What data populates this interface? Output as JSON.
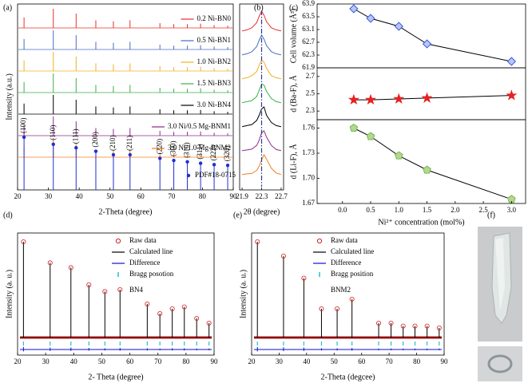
{
  "panel_labels": [
    "(a)",
    "(b)",
    "(c)",
    "(d)",
    "(e)",
    "(f)"
  ],
  "chart_data": [
    {
      "type": "stick-stack",
      "xlabel": "2-Theta (degree)",
      "ylabel": "Intensity (a.u.)",
      "xlim": [
        20,
        90
      ],
      "xticks": [
        20,
        30,
        40,
        50,
        60,
        70,
        80,
        90
      ],
      "x": [
        22.1,
        31.6,
        39.0,
        45.4,
        51.1,
        56.5,
        66.2,
        70.7,
        75.1,
        79.4,
        83.8,
        88.2
      ],
      "series": [
        {
          "name": "0.2 Ni-BN0",
          "color": "#e8312a",
          "values": [
            0.55,
            1.0,
            0.75,
            0.4,
            0.35,
            0.4,
            0.25,
            0.2,
            0.2,
            0.22,
            0.15,
            0.12
          ]
        },
        {
          "name": "0.5 Ni-BN1",
          "color": "#4a6bc4",
          "values": [
            0.55,
            1.0,
            0.75,
            0.4,
            0.35,
            0.4,
            0.25,
            0.2,
            0.2,
            0.22,
            0.15,
            0.12
          ]
        },
        {
          "name": "1.0 Ni-BN2",
          "color": "#f0b020",
          "values": [
            0.55,
            1.0,
            0.75,
            0.4,
            0.35,
            0.4,
            0.25,
            0.2,
            0.2,
            0.22,
            0.15,
            0.12
          ]
        },
        {
          "name": "1.5 Ni-BN3",
          "color": "#3ab04a",
          "values": [
            0.55,
            1.0,
            0.75,
            0.4,
            0.35,
            0.4,
            0.25,
            0.2,
            0.2,
            0.22,
            0.15,
            0.12
          ]
        },
        {
          "name": "3.0 Ni-BN4",
          "color": "#000000",
          "values": [
            0.55,
            1.0,
            0.75,
            0.4,
            0.35,
            0.4,
            0.25,
            0.2,
            0.2,
            0.22,
            0.15,
            0.12
          ]
        },
        {
          "name": "3.0 Ni/0.5 Mg-BNM1",
          "color": "#8e2c8e",
          "values": [
            0.55,
            1.0,
            0.75,
            0.4,
            0.35,
            0.4,
            0.25,
            0.2,
            0.2,
            0.22,
            0.15,
            0.12
          ]
        },
        {
          "name": "3.0 Ni/1.0 Mg-BNM2",
          "color": "#f08020",
          "values": [
            0.55,
            1.0,
            0.75,
            0.4,
            0.35,
            0.4,
            0.25,
            0.2,
            0.2,
            0.22,
            0.15,
            0.12
          ]
        }
      ],
      "reference": {
        "name": "PDF#18-0715",
        "color": "#1f2fd0",
        "values": [
          0.75,
          0.65,
          0.6,
          0.55,
          0.5,
          0.5,
          0.45,
          0.42,
          0.4,
          0.38,
          0.36,
          0.35
        ],
        "hkl": [
          "(100)",
          "(110)",
          "(111)",
          "(200)",
          "(210)",
          "(211)",
          "(220)",
          "(300)",
          "(310)",
          "(311)",
          "(222)",
          "(320)"
        ]
      }
    },
    {
      "type": "line-stack",
      "xlabel": "2θ (degree)",
      "xlim": [
        21.85,
        22.75
      ],
      "xticks": [
        21.9,
        22.3,
        22.7
      ],
      "ref_line": 22.3,
      "x": [
        21.9,
        22.0,
        22.1,
        22.2,
        22.25,
        22.3,
        22.35,
        22.4,
        22.5,
        22.6,
        22.7
      ],
      "series": [
        {
          "color": "#e8312a",
          "values": [
            0.05,
            0.1,
            0.2,
            0.45,
            0.75,
            1.0,
            0.8,
            0.5,
            0.2,
            0.1,
            0.05
          ]
        },
        {
          "color": "#4a6bc4",
          "values": [
            0.05,
            0.1,
            0.2,
            0.45,
            0.75,
            1.0,
            0.8,
            0.5,
            0.2,
            0.1,
            0.05
          ]
        },
        {
          "color": "#f0b020",
          "values": [
            0.05,
            0.1,
            0.2,
            0.4,
            0.7,
            0.95,
            0.85,
            0.55,
            0.2,
            0.1,
            0.05
          ]
        },
        {
          "color": "#3ab04a",
          "values": [
            0.05,
            0.1,
            0.15,
            0.35,
            0.65,
            0.95,
            0.9,
            0.6,
            0.25,
            0.1,
            0.05
          ]
        },
        {
          "color": "#000000",
          "values": [
            0.05,
            0.1,
            0.15,
            0.35,
            0.6,
            0.9,
            1.0,
            0.6,
            0.25,
            0.1,
            0.05
          ]
        },
        {
          "color": "#8e2c8e",
          "values": [
            0.05,
            0.08,
            0.12,
            0.3,
            0.55,
            0.9,
            1.0,
            0.7,
            0.3,
            0.1,
            0.05
          ]
        },
        {
          "color": "#f08020",
          "values": [
            0.05,
            0.08,
            0.1,
            0.25,
            0.45,
            0.75,
            1.0,
            0.8,
            0.35,
            0.12,
            0.05
          ]
        }
      ]
    },
    {
      "type": "stacked-line",
      "xlabel": "Ni²⁺ concentration (mol%)",
      "xlim": [
        -0.45,
        3.25
      ],
      "xticks": [
        {
          "value": 0,
          "label": "0.0"
        },
        0.5,
        {
          "value": 1,
          "label": "1.0"
        },
        1.5,
        {
          "value": 2,
          "label": "2.0"
        },
        2.5,
        {
          "value": 3,
          "label": "3.0"
        }
      ],
      "x": [
        0.2,
        0.5,
        1.0,
        1.5,
        3.0
      ],
      "panels": [
        {
          "ylabel": "Cell volume (Å³)",
          "ylim": [
            61.9,
            63.9
          ],
          "yticks": [
            61.9,
            62.3,
            62.7,
            63.1,
            63.5,
            63.9
          ],
          "values": [
            63.75,
            63.45,
            63.2,
            62.65,
            62.1
          ],
          "color": "#3050e0",
          "marker": "diamond"
        },
        {
          "ylabel": "d (Ba-F), Å",
          "ylim": [
            2.2,
            2.8
          ],
          "yticks": [
            2.3,
            2.5,
            2.7
          ],
          "values": [
            2.43,
            2.43,
            2.44,
            2.45,
            2.48
          ],
          "color": "#e82020",
          "marker": "star"
        },
        {
          "ylabel": "d (Li-F), Å",
          "ylim": [
            1.67,
            1.77
          ],
          "yticks": [
            1.67,
            {
              "value": 1.7,
              "label": "1.70"
            },
            1.73,
            1.76
          ],
          "values": [
            1.76,
            1.75,
            1.727,
            1.71,
            1.675
          ],
          "color": "#78b048",
          "marker": "pentagon"
        }
      ]
    },
    {
      "type": "rietveld",
      "xlabel": "2- Theta (degree)",
      "ylabel": "Intensity (a. u.)",
      "sample": "BN4",
      "xlim": [
        20,
        90
      ],
      "xticks": [
        20,
        30,
        40,
        50,
        60,
        70,
        80,
        90
      ],
      "x": [
        22.1,
        31.6,
        39.0,
        45.4,
        51.1,
        56.5,
        66.2,
        70.7,
        75.1,
        79.4,
        83.8,
        88.2
      ],
      "series": [
        {
          "name": "Raw data",
          "color": "#d02020",
          "values": [
            1.0,
            0.78,
            0.73,
            0.55,
            0.48,
            0.5,
            0.35,
            0.25,
            0.3,
            0.32,
            0.2,
            0.15
          ]
        },
        {
          "name": "Calculated line",
          "color": "#000000",
          "values": [
            1.0,
            0.78,
            0.73,
            0.55,
            0.48,
            0.5,
            0.35,
            0.25,
            0.3,
            0.32,
            0.2,
            0.15
          ]
        },
        {
          "name": "Difference",
          "color": "#1010d0",
          "values": [
            0.08,
            0.06,
            0.06,
            0.05,
            0.04,
            0.05,
            0.04,
            0.03,
            0.04,
            0.04,
            0.03,
            0.03
          ]
        },
        {
          "name": "Bragg posotion",
          "color": "#20c0d0"
        }
      ]
    },
    {
      "type": "rietveld",
      "xlabel": "2-Theta (degcee)",
      "ylabel": "Intensity (a. u.)",
      "sample": "BNM2",
      "xlim": [
        20,
        90
      ],
      "xticks": [
        20,
        30,
        40,
        50,
        60,
        70,
        80,
        90
      ],
      "x": [
        22.1,
        31.6,
        39.0,
        45.4,
        51.1,
        56.5,
        66.2,
        70.7,
        75.1,
        79.4,
        83.8,
        88.2
      ],
      "series": [
        {
          "name": "Raw data",
          "color": "#d02020",
          "values": [
            1.0,
            0.85,
            0.62,
            0.3,
            0.3,
            0.4,
            0.15,
            0.15,
            0.12,
            0.12,
            0.12,
            0.1
          ]
        },
        {
          "name": "Calculated line",
          "color": "#000000",
          "values": [
            1.0,
            0.85,
            0.62,
            0.3,
            0.3,
            0.4,
            0.15,
            0.15,
            0.12,
            0.12,
            0.12,
            0.1
          ]
        },
        {
          "name": "Difference",
          "color": "#1010d0",
          "values": [
            0.08,
            0.07,
            0.06,
            0.04,
            0.04,
            0.05,
            0.03,
            0.03,
            0.03,
            0.03,
            0.03,
            0.03
          ]
        },
        {
          "name": "Bragg position",
          "color": "#20c0d0"
        }
      ]
    }
  ]
}
